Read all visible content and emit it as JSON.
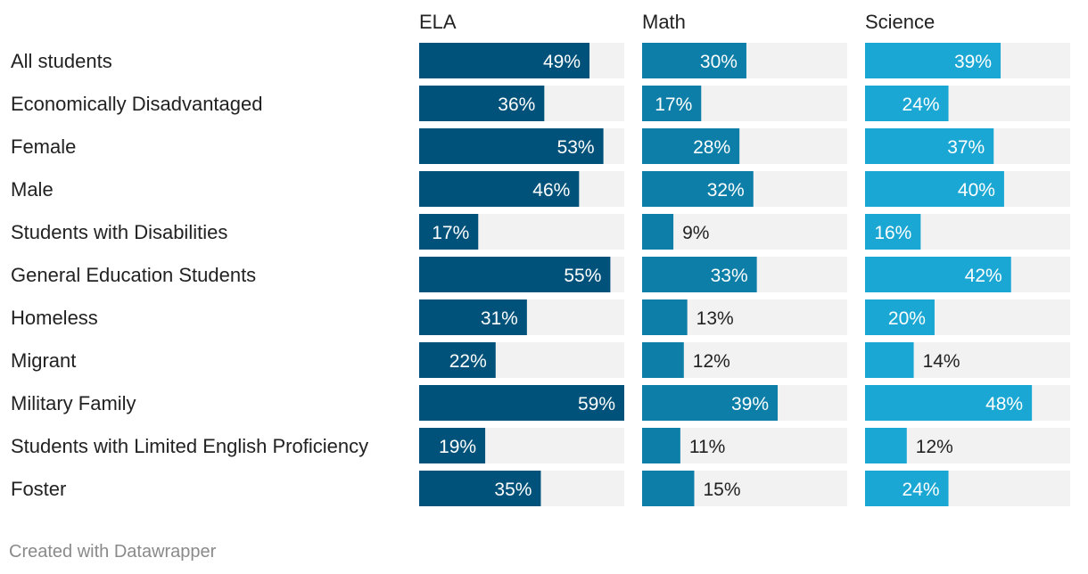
{
  "chart_data": {
    "type": "bar",
    "categories": [
      "All students",
      "Economically Disadvantaged",
      "Female",
      "Male",
      "Students with Disabilities",
      "General Education Students",
      "Homeless",
      "Migrant",
      "Military Family",
      "Students with Limited English Proficiency",
      "Foster"
    ],
    "series": [
      {
        "name": "ELA",
        "color": "#00527a",
        "values": [
          49,
          36,
          53,
          46,
          17,
          55,
          31,
          22,
          59,
          19,
          35
        ]
      },
      {
        "name": "Math",
        "color": "#0c7ea8",
        "values": [
          30,
          17,
          28,
          32,
          9,
          33,
          13,
          12,
          39,
          11,
          15
        ]
      },
      {
        "name": "Science",
        "color": "#1ba7d3",
        "values": [
          39,
          24,
          37,
          40,
          16,
          42,
          20,
          14,
          48,
          12,
          24
        ]
      }
    ],
    "value_suffix": "%",
    "xlim": [
      0,
      59
    ],
    "track_color": "#f2f2f2"
  },
  "footer": {
    "credit": "Created with Datawrapper"
  }
}
